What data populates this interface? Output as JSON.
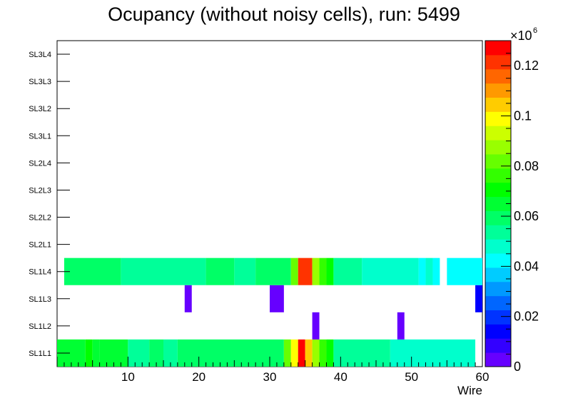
{
  "chart_data": {
    "type": "heatmap",
    "title": "Ocupancy (without noisy cells), run: 5499",
    "xlabel": "Wire",
    "ylabel": "",
    "xlim": [
      0,
      60
    ],
    "x_ticks": [
      10,
      20,
      30,
      40,
      50,
      60
    ],
    "categories": [
      "SL1L1",
      "SL1L2",
      "SL1L3",
      "SL1L4",
      "SL2L1",
      "SL2L2",
      "SL2L3",
      "SL2L4",
      "SL3L1",
      "SL3L2",
      "SL3L3",
      "SL3L4"
    ],
    "zlim": [
      0,
      130000
    ],
    "z_exponent_label": "×10",
    "z_exponent_power": "6",
    "z_ticks": [
      {
        "value": 0,
        "label": "0"
      },
      {
        "value": 20000,
        "label": "0.02"
      },
      {
        "value": 40000,
        "label": "0.04"
      },
      {
        "value": 60000,
        "label": "0.06"
      },
      {
        "value": 80000,
        "label": "0.08"
      },
      {
        "value": 100000,
        "label": "0.1"
      },
      {
        "value": 120000,
        "label": "0.12"
      }
    ],
    "palette": [
      "#6600ff",
      "#3300ff",
      "#0000ff",
      "#0033ff",
      "#0066ff",
      "#0099ff",
      "#00ccff",
      "#00ffff",
      "#00ffcc",
      "#00ff99",
      "#00ff66",
      "#00ff33",
      "#00ff00",
      "#33ff00",
      "#66ff00",
      "#99ff00",
      "#ccff00",
      "#ffff00",
      "#ffcc00",
      "#ff9900",
      "#ff6600",
      "#ff3300",
      "#ff0000"
    ],
    "series": [
      {
        "name": "SL1L1",
        "segments": [
          {
            "x0": 0,
            "x1": 4,
            "z": 67000
          },
          {
            "x0": 4,
            "x1": 5,
            "z": 72000
          },
          {
            "x0": 5,
            "x1": 6,
            "z": 65000
          },
          {
            "x0": 6,
            "x1": 10,
            "z": 63000
          },
          {
            "x0": 10,
            "x1": 13,
            "z": 52000
          },
          {
            "x0": 13,
            "x1": 15,
            "z": 59000
          },
          {
            "x0": 15,
            "x1": 17,
            "z": 52000
          },
          {
            "x0": 17,
            "x1": 32,
            "z": 60000
          },
          {
            "x0": 32,
            "x1": 33,
            "z": 80000
          },
          {
            "x0": 33,
            "x1": 34,
            "z": 100000
          },
          {
            "x0": 34,
            "x1": 35,
            "z": 128000
          },
          {
            "x0": 35,
            "x1": 36,
            "z": 104000
          },
          {
            "x0": 36,
            "x1": 37,
            "z": 88000
          },
          {
            "x0": 37,
            "x1": 38,
            "z": 76000
          },
          {
            "x0": 38,
            "x1": 39,
            "z": 68000
          },
          {
            "x0": 39,
            "x1": 47,
            "z": 53000
          },
          {
            "x0": 47,
            "x1": 59,
            "z": 47000
          }
        ]
      },
      {
        "name": "SL1L2",
        "segments": [
          {
            "x0": 36,
            "x1": 37,
            "z": 3000
          },
          {
            "x0": 48,
            "x1": 49,
            "z": 3000
          }
        ]
      },
      {
        "name": "SL1L3",
        "segments": [
          {
            "x0": 18,
            "x1": 19,
            "z": 3000
          },
          {
            "x0": 30,
            "x1": 32,
            "z": 3000
          },
          {
            "x0": 59,
            "x1": 60,
            "z": 12000
          }
        ]
      },
      {
        "name": "SL1L4",
        "segments": [
          {
            "x0": 1,
            "x1": 9,
            "z": 60000
          },
          {
            "x0": 9,
            "x1": 21,
            "z": 53000
          },
          {
            "x0": 21,
            "x1": 25,
            "z": 60000
          },
          {
            "x0": 25,
            "x1": 28,
            "z": 53000
          },
          {
            "x0": 28,
            "x1": 33,
            "z": 60000
          },
          {
            "x0": 33,
            "x1": 34,
            "z": 84000
          },
          {
            "x0": 34,
            "x1": 36,
            "z": 124000
          },
          {
            "x0": 36,
            "x1": 37,
            "z": 88000
          },
          {
            "x0": 37,
            "x1": 38,
            "z": 75000
          },
          {
            "x0": 38,
            "x1": 39,
            "z": 68000
          },
          {
            "x0": 39,
            "x1": 43,
            "z": 53000
          },
          {
            "x0": 43,
            "x1": 51,
            "z": 47000
          },
          {
            "x0": 51,
            "x1": 52,
            "z": 40000
          },
          {
            "x0": 52,
            "x1": 53,
            "z": 47000
          },
          {
            "x0": 53,
            "x1": 54,
            "z": 40000
          },
          {
            "x0": 55,
            "x1": 60,
            "z": 40000
          }
        ]
      }
    ]
  }
}
